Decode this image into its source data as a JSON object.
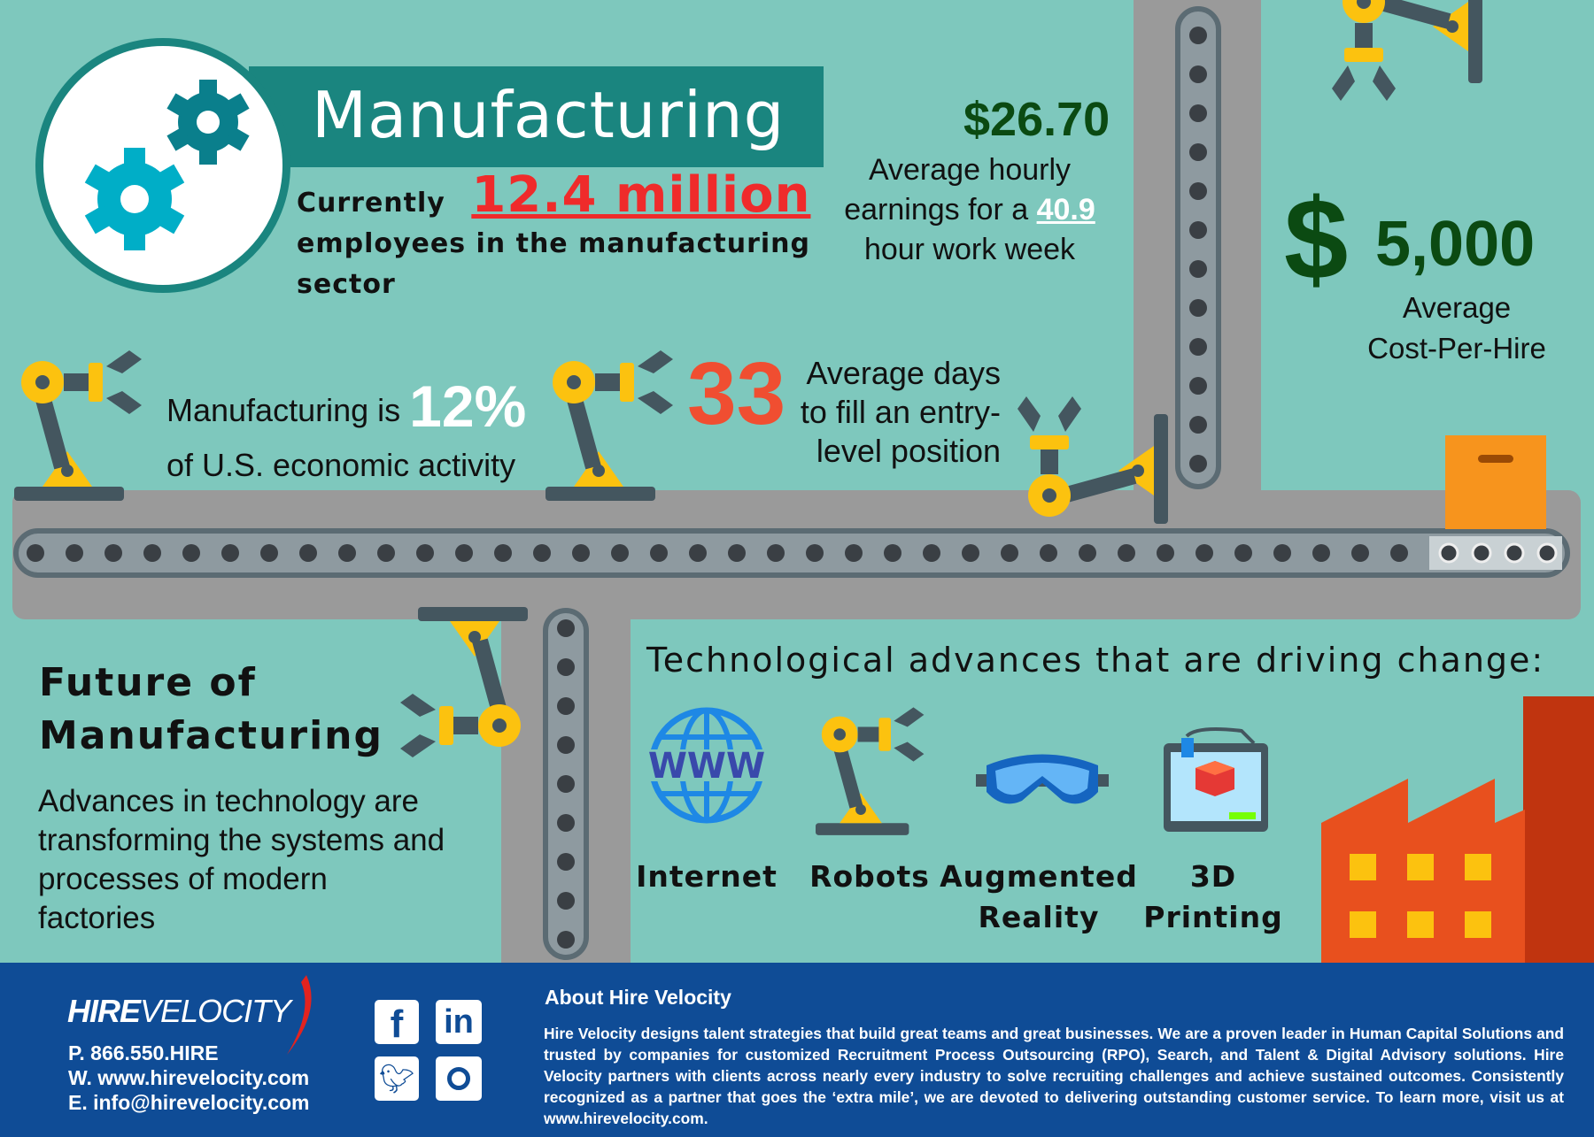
{
  "colors": {
    "background": "#7ec8bd",
    "banner": "#1a857f",
    "conveyor": "#9a9a9a",
    "belt_dot": "#3a3f44",
    "robot_yellow": "#fcc20f",
    "robot_gray": "#44565f",
    "red": "#ef2b2b",
    "orange_red": "#f04e31",
    "dark_green": "#0b4a12",
    "footer": "#0f4c96",
    "factory": "#e8501e"
  },
  "header": {
    "title": "Manufacturing"
  },
  "stats": {
    "employees": {
      "prefix": "Currently",
      "value": "12.4 million",
      "line2": "employees in the manufacturing",
      "line3": "sector"
    },
    "earnings": {
      "value": "$26.70",
      "line1": "Average hourly",
      "line2_prefix": "earnings for a",
      "hours": "40.9",
      "line3": "hour work week"
    },
    "cost_per_hire": {
      "symbol": "$",
      "value": "5,000",
      "line1": "Average",
      "line2": "Cost-Per-Hire"
    },
    "economic": {
      "prefix": "Manufacturing is",
      "value": "12%",
      "line2": "of U.S. economic activity"
    },
    "days_to_fill": {
      "value": "33",
      "line1": "Average days",
      "line2": "to fill an entry-",
      "line3": "level position"
    }
  },
  "future": {
    "title1": "Future of",
    "title2": "Manufacturing",
    "body": [
      "Advances in technology are",
      "transforming the systems and",
      "processes of modern",
      "factories"
    ]
  },
  "tech": {
    "heading": "Technological advances that are driving change:",
    "items": [
      {
        "label1": "Internet",
        "label2": "",
        "icon": "globe-www-icon"
      },
      {
        "label1": "Robots",
        "label2": "",
        "icon": "robot-arm-icon"
      },
      {
        "label1": "Augmented",
        "label2": "Reality",
        "icon": "goggles-icon"
      },
      {
        "label1": "3D",
        "label2": "Printing",
        "icon": "3d-printer-icon"
      }
    ]
  },
  "footer": {
    "logo_bold": "HIRE",
    "logo_light": "VELOCITY",
    "phone": "P. 866.550.HIRE",
    "web": "W. www.hirevelocity.com",
    "email": "E. info@hirevelocity.com",
    "social": [
      "facebook",
      "linkedin",
      "twitter",
      "instagram"
    ],
    "about_title": "About Hire Velocity",
    "about_text": "Hire Velocity designs talent strategies that build great teams and great businesses. We are a proven leader in Human Capital Solutions and trusted by companies for customized Recruitment Process Outsourcing (RPO), Search, and Talent & Digital Advisory solutions. Hire Velocity partners with clients across nearly every industry to solve recruiting challenges and achieve sustained outcomes. Consistently recognized as a partner that goes the ‘extra mile’, we are devoted to delivering outstanding customer service. To learn more, visit us at www.hirevelocity.com."
  }
}
